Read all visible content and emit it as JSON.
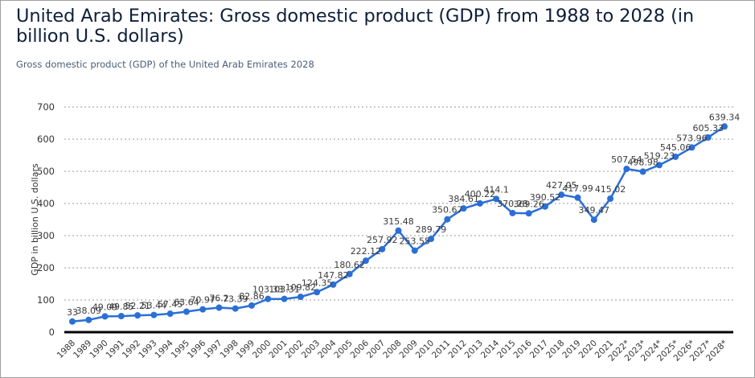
{
  "chart_data": {
    "type": "line",
    "title": "United Arab Emirates: Gross domestic product (GDP) from 1988 to 2028 (in billion U.S. dollars)",
    "subtitle": "Gross domestic product (GDP) of the United Arab Emirates 2028",
    "xlabel": "",
    "ylabel": "GDP in billion U.S. dollars",
    "ylim": [
      0,
      700
    ],
    "yticks": [
      0,
      100,
      200,
      300,
      400,
      500,
      600,
      700
    ],
    "grid": true,
    "legend": "none",
    "line_color": "#2b6fd6",
    "categories": [
      "1988",
      "1989",
      "1990",
      "1991",
      "1992",
      "1993",
      "1994",
      "1995",
      "1996",
      "1997",
      "1998",
      "1999",
      "2000",
      "2001",
      "2002",
      "2003",
      "2004",
      "2005",
      "2006",
      "2007",
      "2008",
      "2009",
      "2010",
      "2011",
      "2012",
      "2013",
      "2014",
      "2015",
      "2016",
      "2017",
      "2018",
      "2019",
      "2020",
      "2021",
      "2022*",
      "2023*",
      "2024*",
      "2025*",
      "2026*",
      "2027*",
      "2028*"
    ],
    "series": [
      {
        "name": "GDP",
        "values": [
          33,
          38.09,
          49.09,
          49.85,
          52.21,
          53.44,
          57.45,
          63.64,
          70.97,
          76.2,
          73.39,
          82.86,
          103.33,
          103.31,
          109.82,
          124.35,
          147.82,
          180.62,
          222.12,
          257.92,
          315.48,
          253.55,
          289.79,
          350.67,
          384.61,
          400.22,
          414.1,
          370.28,
          369.26,
          390.52,
          427.05,
          417.99,
          349.47,
          415.02,
          507.54,
          498.98,
          519.23,
          545.06,
          573.96,
          605.33,
          639.34
        ],
        "labels": [
          "33",
          "38.09",
          "49.09",
          "49.85",
          "52.21",
          "53.44",
          "57.45",
          "63.64",
          "70.97",
          "76.2",
          "73.39",
          "82.86",
          "103.33",
          "103.31",
          "109.82",
          "124.35",
          "147.82",
          "180.62",
          "222.12",
          "257.92",
          "315.48",
          "253.55",
          "289.79",
          "350.67",
          "384.61",
          "400.22",
          "414.1",
          "370.28",
          "369.26",
          "390.52",
          "427.05",
          "417.99",
          "349.47",
          "415.02",
          "507.54",
          "498.98",
          "519.23",
          "545.06",
          "573.96",
          "605.33",
          "639.34"
        ]
      }
    ]
  }
}
